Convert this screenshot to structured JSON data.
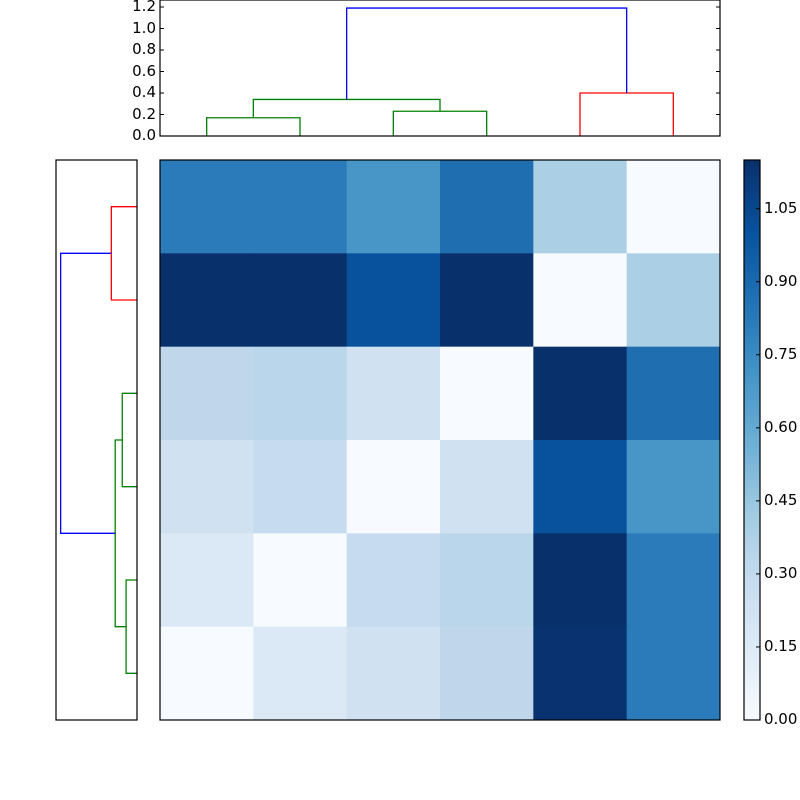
{
  "chart_data": {
    "type": "heatmap",
    "title": "",
    "description": "Clustered heatmap with top and left dendrograms and colorbar",
    "colormap": "Blues",
    "matrix": [
      [
        0.8,
        0.8,
        0.65,
        0.87,
        0.4,
        0.0
      ],
      [
        1.15,
        1.15,
        1.0,
        1.15,
        0.0,
        0.4
      ],
      [
        0.3,
        0.32,
        0.2,
        0.0,
        1.15,
        0.87
      ],
      [
        0.2,
        0.27,
        0.0,
        0.2,
        1.0,
        0.65
      ],
      [
        0.15,
        0.0,
        0.27,
        0.32,
        1.15,
        0.8
      ],
      [
        0.0,
        0.15,
        0.2,
        0.3,
        1.12,
        0.8
      ]
    ],
    "cell_colors": [
      [
        "#2b7bba",
        "#2b7bba",
        "#4896c8",
        "#1f6eb0",
        "#abcfe5",
        "#f7fbff"
      ],
      [
        "#08306b",
        "#08306b",
        "#08519c",
        "#08306b",
        "#f7fbff",
        "#abcfe5"
      ],
      [
        "#c0d6eb",
        "#bad6ea",
        "#d0e1f2",
        "#f7fbff",
        "#08306b",
        "#1f6eb0"
      ],
      [
        "#d0e1f2",
        "#c6dbef",
        "#f7fbff",
        "#d0e1f2",
        "#08519c",
        "#4896c8"
      ],
      [
        "#dbe9f6",
        "#f7fbff",
        "#c6dbef",
        "#bad6ea",
        "#08306b",
        "#2b7bba"
      ],
      [
        "#f7fbff",
        "#dbe9f6",
        "#d0e1f2",
        "#c0d6eb",
        "#083370",
        "#2b7bba"
      ]
    ],
    "top_dendrogram": {
      "ylim": [
        0,
        1.2
      ],
      "yticks": [
        "0.0",
        "0.2",
        "0.4",
        "0.6",
        "0.8",
        "1.0",
        "1.2"
      ],
      "links": [
        {
          "left": 0,
          "right": 1,
          "height": 0.17,
          "color": "#008000"
        },
        {
          "left": 2,
          "right": 3,
          "height": 0.23,
          "color": "#008000"
        },
        {
          "left": "c01",
          "right": "c23",
          "height": 0.34,
          "color": "#008000"
        },
        {
          "left": 4,
          "right": 5,
          "height": 0.4,
          "color": "#ff0000"
        },
        {
          "left": "c0123",
          "right": "c45",
          "height": 1.19,
          "color": "#0000ff"
        }
      ]
    },
    "left_dendrogram": {
      "links": [
        {
          "top": 0,
          "bottom": 1,
          "height": 0.4,
          "color": "#ff0000"
        },
        {
          "top": 2,
          "bottom": 3,
          "height": 0.23,
          "color": "#008000"
        },
        {
          "top": 4,
          "bottom": 5,
          "height": 0.17,
          "color": "#008000"
        },
        {
          "top": "c23",
          "bottom": "c45",
          "height": 0.34,
          "color": "#008000"
        },
        {
          "top": "c01",
          "bottom": "c2345",
          "height": 1.19,
          "color": "#0000ff"
        }
      ]
    },
    "colorbar": {
      "range": [
        0.0,
        1.15
      ],
      "ticks": [
        "0.00",
        "0.15",
        "0.30",
        "0.45",
        "0.60",
        "0.75",
        "0.90",
        "1.05"
      ]
    }
  }
}
